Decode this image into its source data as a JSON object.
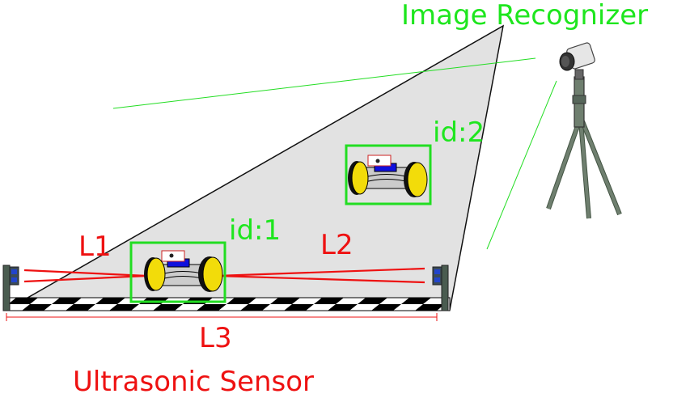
{
  "labels": {
    "image_recognizer": "Image Recognizer",
    "id1": "id:1",
    "id2": "id:2",
    "l1": "L1",
    "l2": "L2",
    "l3": "L3",
    "ultrasonic_sensor": "Ultrasonic Sensor"
  },
  "colors": {
    "label_green": "#1ee61e",
    "label_red": "#ee1111",
    "field_of_view": "#e2e2e2",
    "robot_wheel": "#f2dc0a",
    "camera_stand": "#667766"
  }
}
